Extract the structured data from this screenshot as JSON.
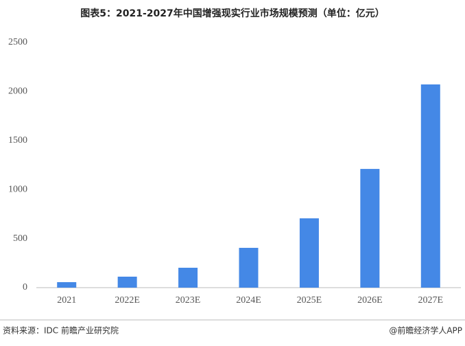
{
  "chart_data": {
    "type": "bar",
    "title": "图表5：2021-2027年中国增强现实行业市场规模预测（单位：亿元）",
    "categories": [
      "2021",
      "2022E",
      "2023E",
      "2024E",
      "2025E",
      "2026E",
      "2027E"
    ],
    "values": [
      56,
      112,
      203,
      406,
      707,
      1211,
      2073
    ],
    "color": "#4488e6",
    "ylim": [
      0,
      2500
    ],
    "yticks": [
      0,
      500,
      1000,
      1500,
      2000,
      2500
    ],
    "grid": false,
    "source": "资料来源：IDC 前瞻产业研究院",
    "credit": "@前瞻经济学人APP"
  }
}
